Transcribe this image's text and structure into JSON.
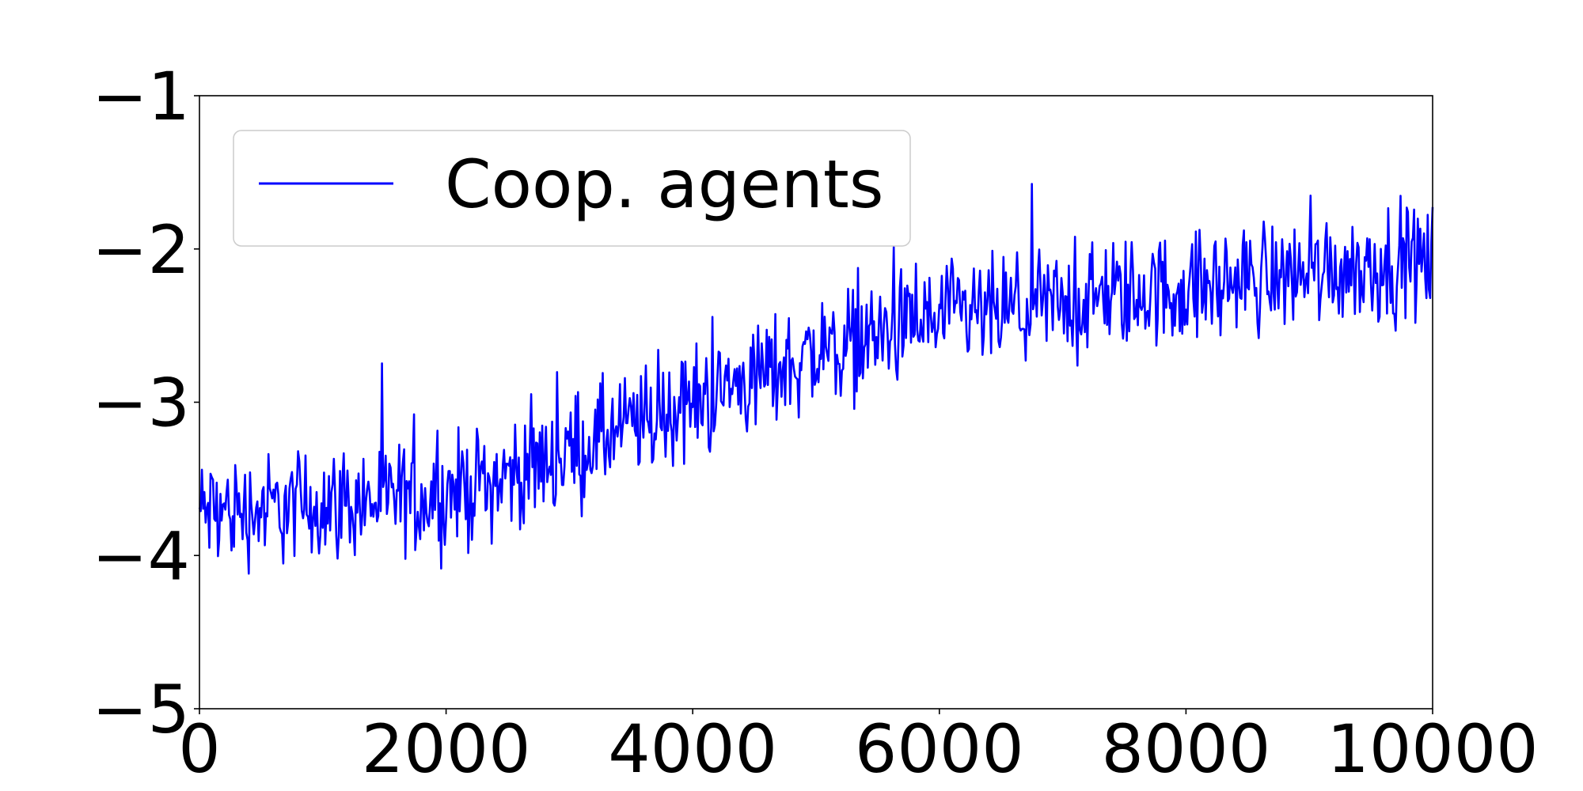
{
  "chart_data": {
    "type": "line",
    "title": "",
    "xlabel": "",
    "ylabel": "",
    "xlim": [
      0,
      10000
    ],
    "ylim": [
      -5,
      -1
    ],
    "xticks": [
      0,
      2000,
      4000,
      6000,
      8000,
      10000
    ],
    "yticks": [
      -1,
      -2,
      -3,
      -4,
      -5
    ],
    "xtick_labels": [
      "0",
      "2000",
      "4000",
      "6000",
      "8000",
      "10000"
    ],
    "ytick_labels": [
      "−1",
      "−2",
      "−3",
      "−4",
      "−5"
    ],
    "grid": false,
    "legend": {
      "position": "top-left"
    },
    "series": [
      {
        "name": "Coop. agents",
        "color": "#0000ff",
        "trend_x": [
          0,
          500,
          1000,
          1500,
          2000,
          2500,
          3000,
          3500,
          4000,
          4500,
          5000,
          5500,
          6000,
          6500,
          7000,
          7500,
          8000,
          8500,
          9000,
          9500,
          10000
        ],
        "trend_y": [
          -3.72,
          -3.7,
          -3.66,
          -3.64,
          -3.6,
          -3.48,
          -3.32,
          -3.16,
          -3.0,
          -2.84,
          -2.68,
          -2.56,
          -2.46,
          -2.42,
          -2.36,
          -2.3,
          -2.26,
          -2.2,
          -2.14,
          -2.1,
          -2.08
        ],
        "noise_amplitude": 0.18,
        "x_step": 10
      }
    ]
  }
}
